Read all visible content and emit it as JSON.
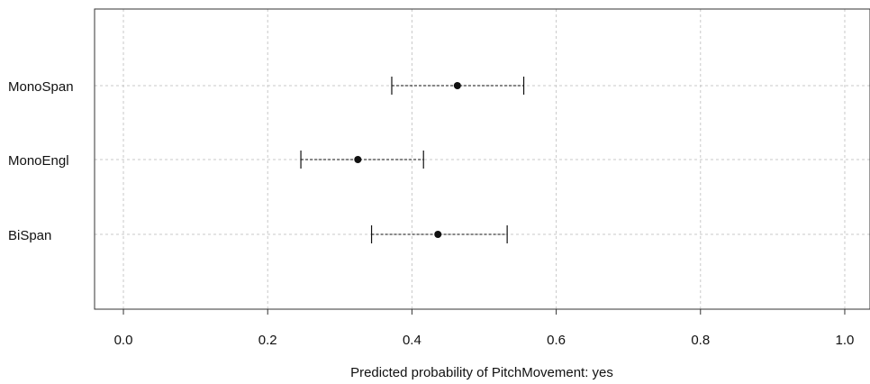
{
  "chart_data": {
    "type": "scatter",
    "xlabel": "Predicted probability of PitchMovement: yes",
    "xlim": [
      -0.04,
      1.035
    ],
    "xticks": [
      0.0,
      0.2,
      0.4,
      0.6,
      0.8,
      1.0
    ],
    "xtick_labels": [
      "0.0",
      "0.2",
      "0.4",
      "0.6",
      "0.8",
      "1.0"
    ],
    "categories": [
      "MonoSpan",
      "MonoEngl",
      "BiSpan"
    ],
    "estimates": [
      0.463,
      0.325,
      0.436
    ],
    "lower": [
      0.372,
      0.246,
      0.344
    ],
    "upper": [
      0.555,
      0.416,
      0.532
    ],
    "grid": true
  }
}
